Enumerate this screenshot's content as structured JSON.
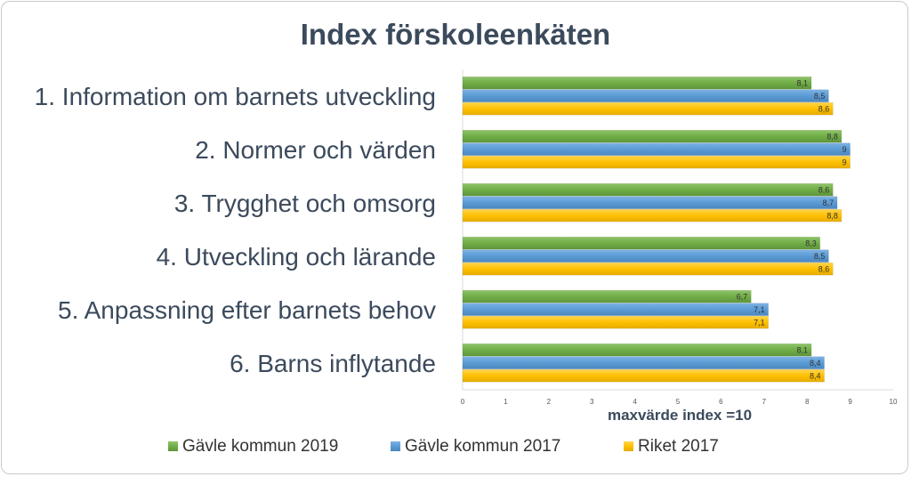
{
  "chart_data": {
    "type": "bar",
    "orientation": "horizontal",
    "title": "Index förskoleenkäten",
    "xlabel": "maxvärde index =10",
    "ylabel": "",
    "xlim": [
      0,
      10
    ],
    "ticks": [
      "0",
      "1",
      "2",
      "3",
      "4",
      "5",
      "6",
      "7",
      "8",
      "9",
      "10"
    ],
    "grid": false,
    "legend_position": "bottom",
    "categories": [
      "1. Information om barnets utveckling",
      "2. Normer och värden",
      "3. Trygghet och omsorg",
      "4. Utveckling och lärande",
      "5. Anpassning efter barnets behov",
      "6. Barns inflytande"
    ],
    "series": [
      {
        "name": "Gävle kommun 2019",
        "color": "#70ad47",
        "values": [
          8.1,
          8.8,
          8.6,
          8.3,
          6.7,
          8.1
        ],
        "labels": [
          "8,1",
          "8,8",
          "8,6",
          "8,3",
          "6,7",
          "8,1"
        ]
      },
      {
        "name": "Gävle kommun 2017",
        "color": "#5b9bd5",
        "values": [
          8.5,
          9,
          8.7,
          8.5,
          7.1,
          8.4
        ],
        "labels": [
          "8,5",
          "9",
          "8,7",
          "8,5",
          "7,1",
          "8,4"
        ]
      },
      {
        "name": "Riket 2017",
        "color": "#ffc000",
        "values": [
          8.6,
          9,
          8.8,
          8.6,
          7.1,
          8.4
        ],
        "labels": [
          "8,6",
          "9",
          "8,8",
          "8,6",
          "7,1",
          "8,4"
        ]
      }
    ]
  }
}
